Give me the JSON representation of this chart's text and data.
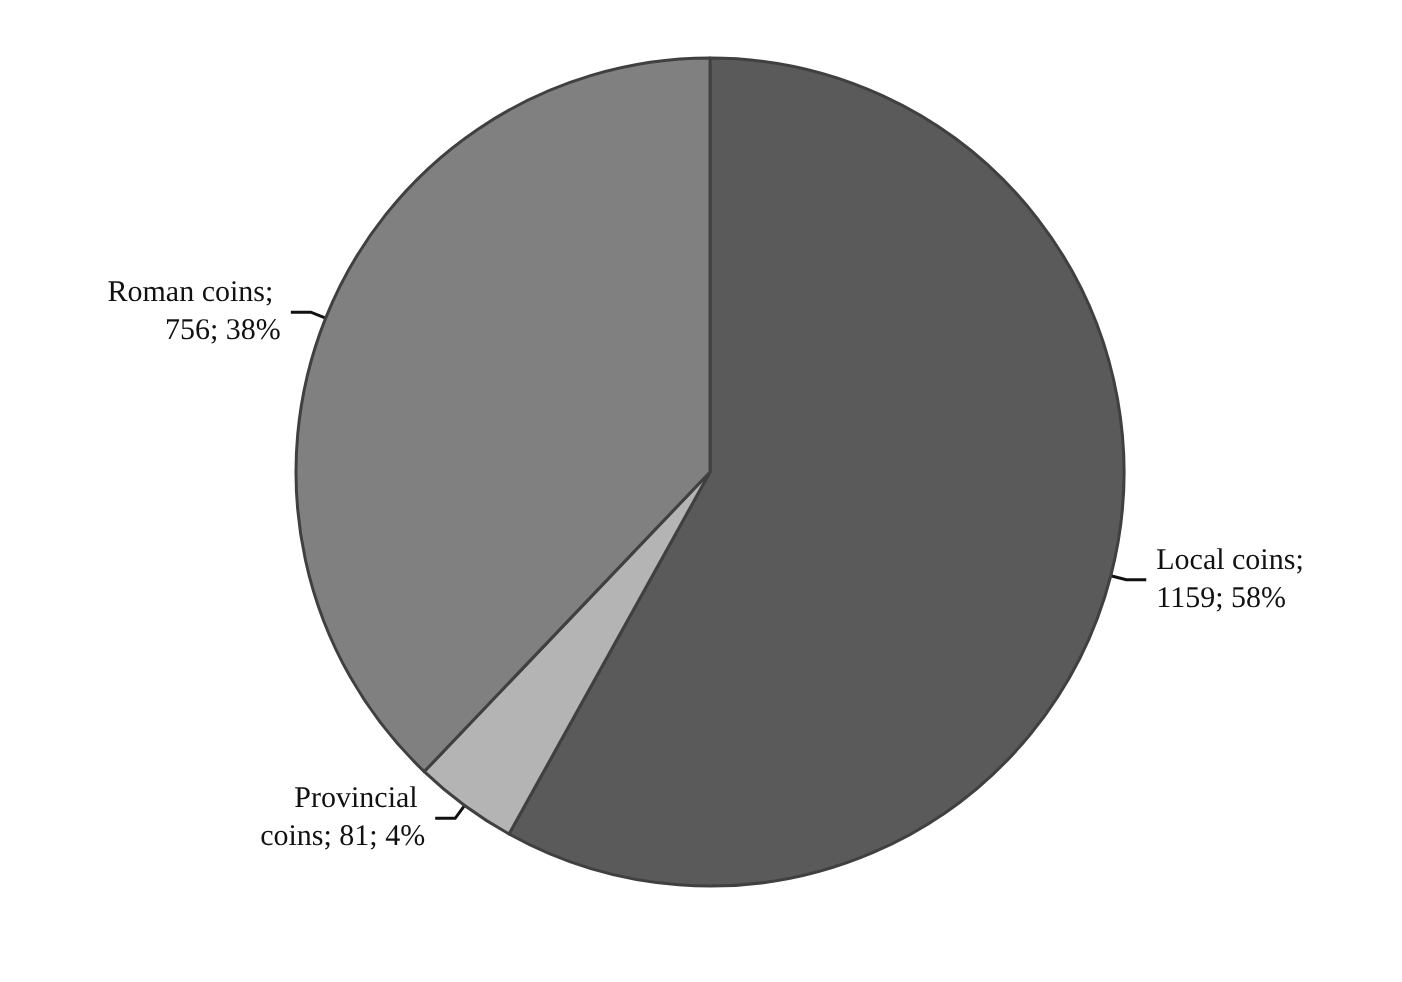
{
  "chart_data": {
    "type": "pie",
    "categories": [
      "Local coins",
      "Provincial coins",
      "Roman coins"
    ],
    "values": [
      1159,
      81,
      756
    ],
    "colors": [
      "#5a5a5a",
      "#b4b4b4",
      "#808080"
    ],
    "value_labels": [
      "; 1159; 58%",
      "; 81; 4%",
      "; 756; 38%"
    ]
  }
}
